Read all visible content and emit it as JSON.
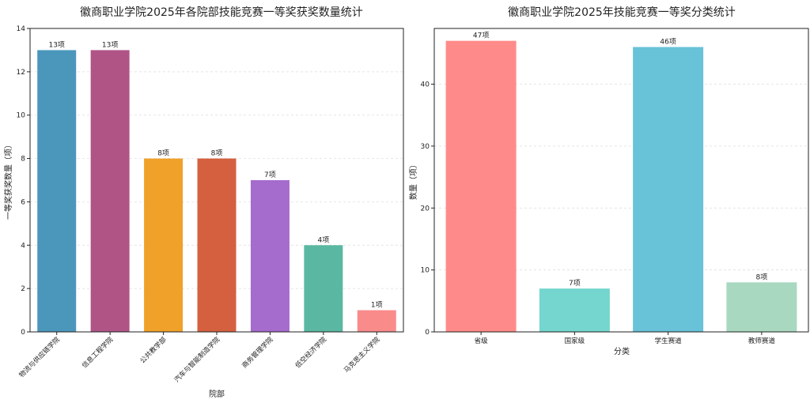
{
  "chart_data": [
    {
      "type": "bar",
      "title": "徽商职业学院2025年各院部技能竞赛一等奖获奖数量统计",
      "xlabel": "院部",
      "ylabel": "一等奖获奖数量（项）",
      "ylim": [
        0,
        14
      ],
      "yticks": [
        0,
        2,
        4,
        6,
        8,
        10,
        12,
        14
      ],
      "grid": true,
      "categories": [
        "物流与供应链学院",
        "信息工程学院",
        "公共教学部",
        "汽车与智能制造学院",
        "商务管理学院",
        "低空经济学院",
        "马克思主义学院"
      ],
      "values": [
        13,
        13,
        8,
        8,
        7,
        4,
        1
      ],
      "data_labels": [
        "13项",
        "13项",
        "8项",
        "8项",
        "7项",
        "4项",
        "1项"
      ],
      "colors": [
        "#4b97bc",
        "#b05486",
        "#efa12a",
        "#d4603f",
        "#a56bcd",
        "#5ab8a2",
        "#fa8b8b"
      ]
    },
    {
      "type": "bar",
      "title": "徽商职业学院2025年技能竞赛一等奖分类统计",
      "xlabel": "分类",
      "ylabel": "数量（项）",
      "ylim": [
        0,
        49
      ],
      "yticks": [
        0,
        10,
        20,
        30,
        40
      ],
      "grid": true,
      "categories": [
        "省级",
        "国家级",
        "学生赛道",
        "教师赛道"
      ],
      "values": [
        47,
        7,
        46,
        8
      ],
      "data_labels": [
        "47项",
        "7项",
        "46项",
        "8项"
      ],
      "colors": [
        "#ff8a8a",
        "#74d6ce",
        "#68c2d8",
        "#a9d8c0"
      ]
    }
  ]
}
